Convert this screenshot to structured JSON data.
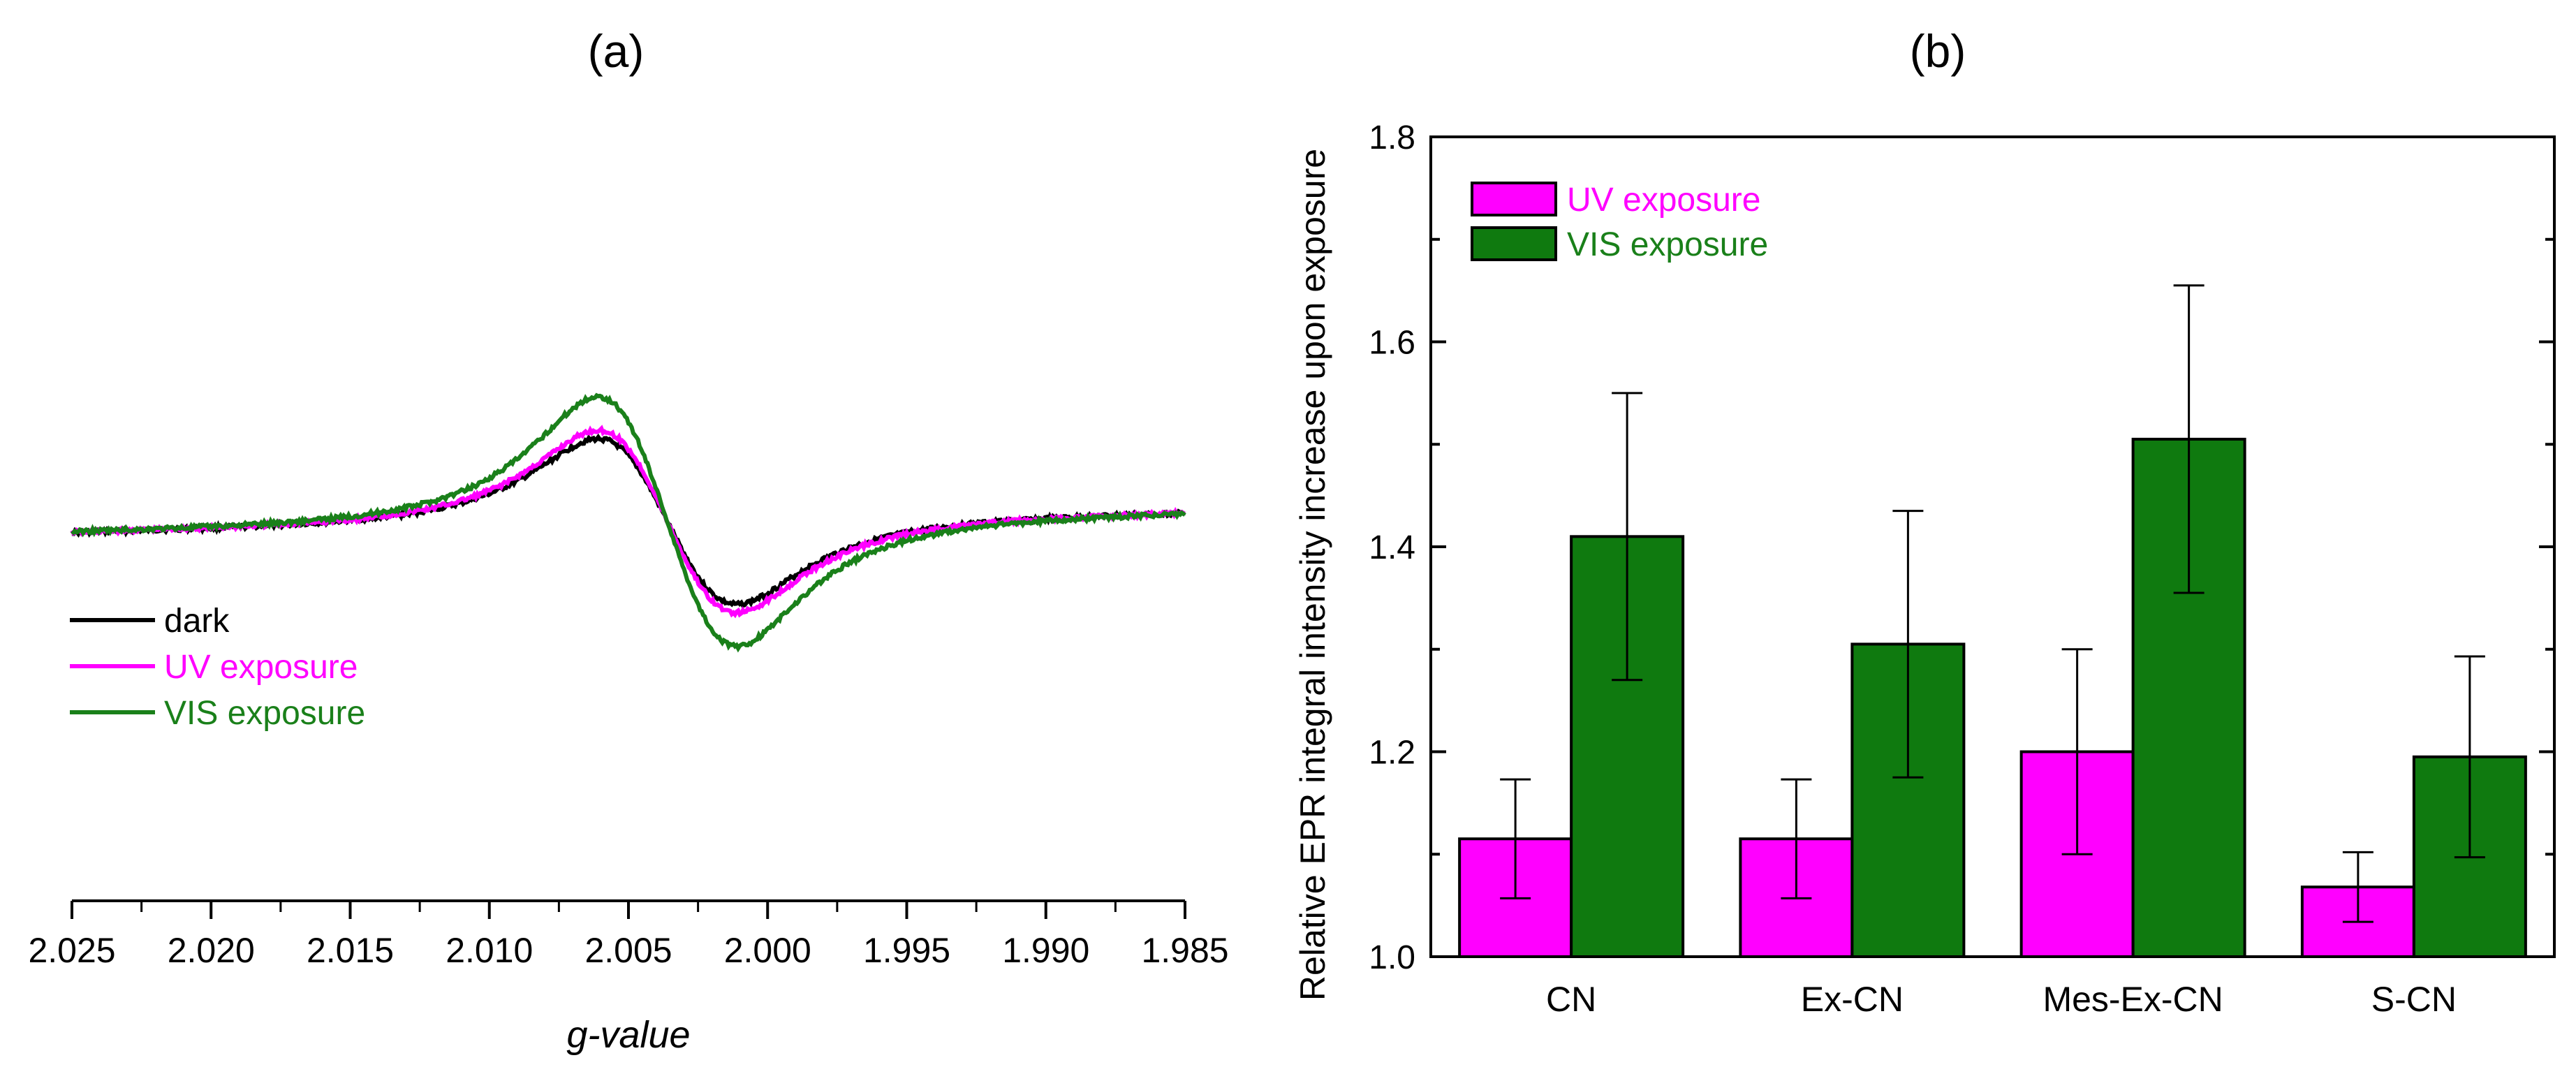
{
  "panels": {
    "a_label": "(a)",
    "b_label": "(b)"
  },
  "chart_data": [
    {
      "type": "line",
      "xlabel": "g-value",
      "ylabel": "",
      "xlim": [
        2.025,
        1.985
      ],
      "x_reversed": true,
      "x_ticks": [
        "2.025",
        "2.020",
        "2.015",
        "2.010",
        "2.005",
        "2.000",
        "1.995",
        "1.990",
        "1.985"
      ],
      "y_axis_shown": false,
      "legend": "left-middle",
      "shape": {
        "center": 2.0036,
        "separation": 0.0035,
        "width": 0.0052,
        "baseline_slope": -0.05
      },
      "series": [
        {
          "name": "dark",
          "color": "#000000",
          "amplitude": 1.0
        },
        {
          "name": "UV exposure",
          "color": "#ff00ff",
          "amplitude": 1.1
        },
        {
          "name": "VIS exposure",
          "color": "#1a801a",
          "amplitude": 1.5
        }
      ]
    },
    {
      "type": "bar",
      "categories": [
        "CN",
        "Ex-CN",
        "Mes-Ex-CN",
        "S-CN"
      ],
      "ylabel": "Relative EPR integral intensity increase upon exposure",
      "xlabel": "",
      "ylim": [
        1.0,
        1.8
      ],
      "y_ticks": [
        "1.0",
        "1.2",
        "1.4",
        "1.6",
        "1.8"
      ],
      "legend": "top-left",
      "series": [
        {
          "name": "UV exposure",
          "color": "#ff00ff",
          "text_color": "#ff00ff",
          "values": [
            1.115,
            1.115,
            1.2,
            1.068
          ],
          "errors": [
            0.058,
            0.058,
            0.1,
            0.034
          ]
        },
        {
          "name": "VIS exposure",
          "color": "#0f7a0f",
          "text_color": "#1a801a",
          "values": [
            1.41,
            1.305,
            1.505,
            1.195
          ],
          "errors": [
            0.14,
            0.13,
            0.15,
            0.098
          ]
        }
      ]
    }
  ]
}
